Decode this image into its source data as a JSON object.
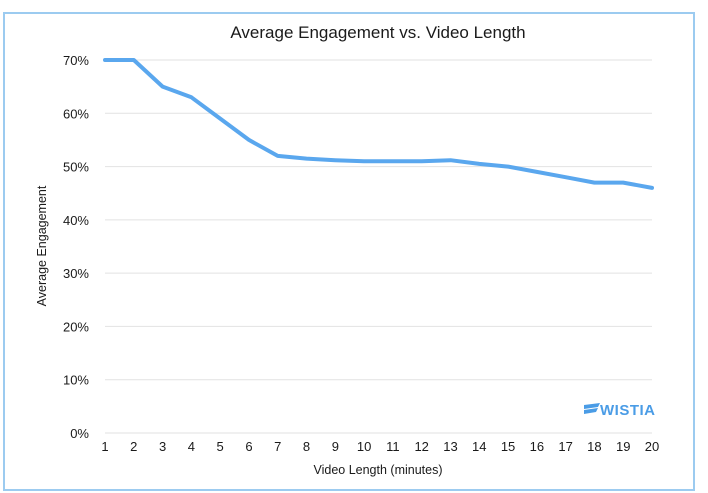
{
  "chart_data": {
    "type": "line",
    "title": "Average Engagement vs. Video Length",
    "xlabel": "Video Length (minutes)",
    "ylabel": "Average Engagement",
    "x": [
      1,
      2,
      3,
      4,
      5,
      6,
      7,
      8,
      9,
      10,
      11,
      12,
      13,
      14,
      15,
      16,
      17,
      18,
      19,
      20
    ],
    "series": [
      {
        "values": [
          70,
          70,
          65,
          63,
          59,
          55,
          52,
          51.5,
          51.2,
          51,
          51,
          51,
          51.2,
          50.5,
          50,
          49,
          48,
          47,
          47,
          46
        ],
        "color": "#5aa7ee"
      }
    ],
    "ylim": [
      0,
      70
    ],
    "xlim": [
      1,
      20
    ],
    "yticks": [
      0,
      10,
      20,
      30,
      40,
      50,
      60,
      70
    ],
    "ytick_labels": [
      "0%",
      "10%",
      "20%",
      "30%",
      "40%",
      "50%",
      "60%",
      "70%"
    ],
    "xtick_labels": [
      "1",
      "2",
      "3",
      "4",
      "5",
      "6",
      "7",
      "8",
      "9",
      "10",
      "11",
      "12",
      "13",
      "14",
      "15",
      "16",
      "17",
      "18",
      "19",
      "20"
    ],
    "grid": true,
    "legend": "none"
  },
  "logo": {
    "text": "WISTIA",
    "color": "#4a9ce6",
    "icon": "wistia-logo-icon"
  }
}
